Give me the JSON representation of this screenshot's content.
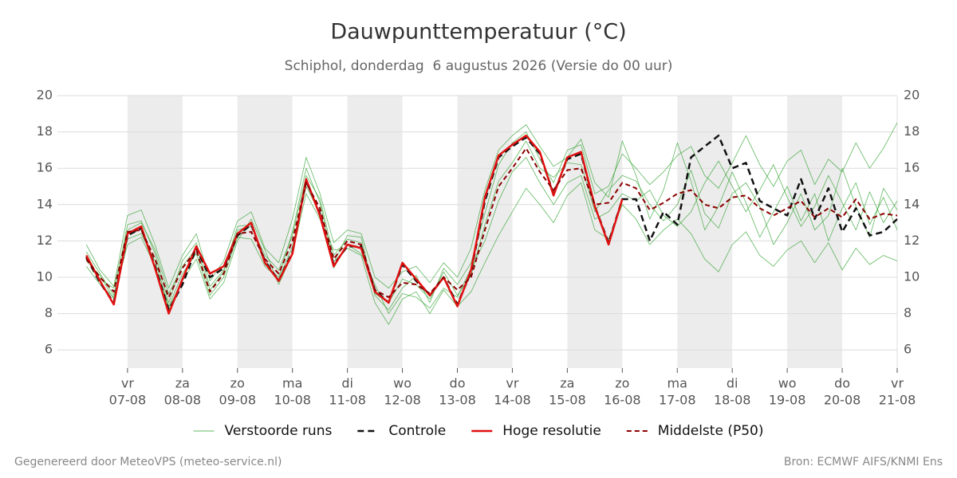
{
  "chart_data": {
    "type": "line",
    "title": "Dauwpunttemperatuur (°C)",
    "subtitle": "Schiphol, donderdag  6 augustus 2026 (Versie do 00 uur)",
    "xlim": [
      5.725,
      21
    ],
    "xticks": [
      {
        "value": 7,
        "label": "vr",
        "sublabel": "07-08"
      },
      {
        "value": 8,
        "label": "za",
        "sublabel": "08-08"
      },
      {
        "value": 9,
        "label": "zo",
        "sublabel": "09-08"
      },
      {
        "value": 10,
        "label": "ma",
        "sublabel": "10-08"
      },
      {
        "value": 11,
        "label": "di",
        "sublabel": "11-08"
      },
      {
        "value": 12,
        "label": "wo",
        "sublabel": "12-08"
      },
      {
        "value": 13,
        "label": "do",
        "sublabel": "13-08"
      },
      {
        "value": 14,
        "label": "vr",
        "sublabel": "14-08"
      },
      {
        "value": 15,
        "label": "za",
        "sublabel": "15-08"
      },
      {
        "value": 16,
        "label": "zo",
        "sublabel": "16-08"
      },
      {
        "value": 17,
        "label": "ma",
        "sublabel": "17-08"
      },
      {
        "value": 18,
        "label": "di",
        "sublabel": "18-08"
      },
      {
        "value": 19,
        "label": "wo",
        "sublabel": "19-08"
      },
      {
        "value": 20,
        "label": "do",
        "sublabel": "20-08"
      },
      {
        "value": 21,
        "label": "vr",
        "sublabel": "21-08"
      }
    ],
    "ylim": [
      5,
      20
    ],
    "yticks": [
      6,
      8,
      10,
      12,
      14,
      16,
      18,
      20
    ],
    "grid": true,
    "x": [
      6.25,
      6.5,
      6.75,
      7,
      7.25,
      7.5,
      7.75,
      8,
      8.25,
      8.5,
      8.75,
      9,
      9.25,
      9.5,
      9.75,
      10,
      10.25,
      10.5,
      10.75,
      11,
      11.25,
      11.5,
      11.75,
      12,
      12.25,
      12.5,
      12.75,
      13,
      13.25,
      13.5,
      13.75,
      14,
      14.25,
      14.5,
      14.75,
      15,
      15.25,
      15.5,
      15.75,
      16,
      16.25,
      16.5,
      16.75,
      17,
      17.25,
      17.5,
      17.75,
      18,
      18.25,
      18.5,
      18.75,
      19,
      19.25,
      19.5,
      19.75,
      20,
      20.25,
      20.5,
      20.75,
      21
    ],
    "series": [
      {
        "name": "Verstoorde runs",
        "color": "#2ca02c",
        "width": 0.8,
        "dash": "none",
        "members": [
          [
            11.4,
            10.2,
            9.0,
            12.9,
            13.1,
            11.3,
            8.6,
            10.9,
            11.9,
            9.5,
            10.4,
            12.8,
            12.9,
            10.7,
            10.0,
            12.5,
            16.0,
            14.1,
            10.8,
            12.3,
            12.2,
            9.0,
            8.2,
            9.4,
            10.1,
            8.6,
            10.5,
            9.6,
            10.8,
            13.5,
            16.2,
            17.4,
            18.0,
            16.5,
            15.2,
            17.0,
            17.3,
            14.6,
            15.0,
            16.8,
            16.0,
            15.1,
            15.8,
            16.7,
            17.2,
            15.6,
            14.9,
            16.3,
            17.8,
            16.2,
            15.0,
            16.4,
            17.0,
            15.1,
            16.5,
            15.8,
            17.4,
            16.0,
            17.1,
            18.5
          ],
          [
            10.6,
            9.6,
            8.9,
            11.8,
            12.2,
            10.6,
            8.3,
            9.8,
            11.0,
            8.8,
            9.7,
            12.0,
            13.2,
            11.5,
            9.6,
            11.3,
            14.6,
            13.2,
            11.5,
            11.6,
            11.2,
            8.6,
            7.4,
            8.8,
            9.2,
            8.0,
            9.3,
            8.4,
            9.2,
            10.8,
            12.3,
            13.6,
            14.9,
            14.0,
            13.0,
            14.5,
            15.2,
            12.6,
            12.1,
            14.0,
            13.2,
            11.8,
            12.6,
            13.2,
            12.4,
            11.0,
            10.3,
            11.8,
            12.5,
            11.2,
            10.6,
            11.5,
            12.0,
            10.8,
            11.9,
            10.4,
            11.6,
            10.7,
            11.2,
            10.9
          ],
          [
            11.8,
            10.4,
            9.5,
            13.4,
            13.7,
            11.8,
            9.4,
            11.2,
            12.4,
            9.8,
            10.9,
            13.1,
            13.6,
            11.6,
            10.8,
            13.2,
            16.6,
            14.6,
            11.9,
            12.6,
            12.4,
            10.0,
            9.4,
            10.3,
            10.6,
            9.7,
            10.8,
            10.0,
            11.6,
            14.8,
            17.0,
            17.8,
            18.4,
            17.2,
            16.1,
            16.6,
            17.6,
            15.2,
            14.4,
            17.5,
            15.6,
            13.2,
            14.8,
            17.4,
            15.3,
            12.6,
            13.9,
            15.8,
            14.1,
            12.2,
            13.6,
            15.0,
            13.1,
            14.6,
            12.0,
            13.8,
            15.2,
            12.9,
            14.4,
            12.6
          ],
          [
            10.9,
            10.1,
            8.8,
            12.1,
            12.4,
            10.9,
            8.4,
            10.2,
            11.3,
            9.0,
            10.0,
            12.2,
            12.1,
            10.6,
            9.9,
            11.7,
            15.0,
            13.5,
            10.5,
            11.8,
            11.3,
            9.6,
            8.0,
            9.1,
            8.9,
            8.3,
            9.4,
            8.9,
            10.5,
            12.0,
            14.2,
            15.8,
            16.6,
            15.2,
            14.0,
            15.2,
            15.6,
            13.2,
            13.6,
            14.6,
            14.2,
            14.8,
            13.4,
            12.8,
            13.6,
            15.2,
            16.4,
            15.0,
            13.6,
            14.8,
            16.2,
            14.4,
            12.8,
            13.9,
            15.6,
            14.1,
            12.6,
            14.7,
            13.0,
            14.2
          ],
          [
            11.1,
            9.9,
            9.4,
            12.6,
            13.0,
            11.5,
            9.1,
            10.6,
            11.6,
            9.3,
            10.3,
            12.6,
            12.8,
            11.2,
            10.4,
            12.3,
            15.6,
            14.3,
            11.2,
            12.1,
            11.9,
            9.1,
            8.6,
            9.9,
            9.6,
            8.8,
            10.3,
            9.0,
            10.1,
            12.9,
            15.3,
            16.3,
            17.5,
            16.0,
            15.5,
            16.3,
            16.2,
            13.6,
            14.8,
            15.6,
            15.3,
            14.0,
            13.1,
            14.0,
            15.9,
            13.5,
            12.7,
            14.6,
            15.2,
            13.9,
            11.8,
            13.0,
            14.6,
            12.6,
            13.4,
            16.0,
            13.9,
            12.2,
            14.9,
            13.7
          ]
        ]
      },
      {
        "name": "Controle",
        "color": "#111111",
        "width": 2.5,
        "dash": "8 5",
        "values": [
          11.1,
          9.7,
          8.6,
          12.3,
          12.7,
          10.6,
          8.2,
          9.6,
          11.6,
          10.0,
          10.5,
          12.3,
          12.9,
          10.9,
          9.8,
          11.4,
          15.3,
          13.5,
          10.7,
          11.7,
          11.7,
          9.3,
          8.6,
          10.7,
          9.8,
          9.0,
          10.0,
          8.5,
          10.3,
          14.2,
          16.6,
          17.2,
          17.7,
          16.8,
          14.6,
          16.5,
          16.8,
          13.9,
          11.9,
          14.3,
          14.3,
          12.0,
          13.6,
          12.9,
          16.6,
          17.2,
          17.8,
          16.0,
          16.3,
          14.2,
          13.8,
          13.4,
          15.4,
          13.2,
          14.9,
          12.5,
          13.8,
          12.3,
          12.5,
          13.2
        ]
      },
      {
        "name": "Hoge resolutie",
        "color": "#e01010",
        "width": 2.5,
        "dash": "none",
        "values": [
          11.2,
          9.8,
          8.5,
          12.4,
          12.8,
          10.5,
          8.0,
          9.9,
          11.7,
          10.2,
          10.6,
          12.4,
          13.0,
          10.8,
          9.8,
          11.3,
          15.4,
          13.4,
          10.6,
          11.8,
          11.6,
          9.2,
          8.6,
          10.8,
          9.9,
          9.0,
          10.0,
          8.4,
          10.4,
          14.4,
          16.7,
          17.3,
          17.8,
          16.9,
          14.5,
          16.6,
          16.9,
          13.9,
          11.8,
          14.3,
          null,
          null,
          null,
          null,
          null,
          null,
          null,
          null,
          null,
          null,
          null,
          null,
          null,
          null,
          null,
          null,
          null,
          null,
          null,
          null
        ]
      },
      {
        "name": "Middelste (P50)",
        "color": "#8b0000",
        "width": 2,
        "dash": "6 4",
        "values": [
          11.0,
          10.0,
          9.2,
          12.5,
          12.6,
          11.0,
          8.9,
          10.5,
          11.5,
          9.2,
          10.2,
          12.4,
          12.5,
          11.0,
          10.2,
          12.0,
          15.2,
          13.8,
          11.0,
          12.0,
          11.8,
          9.3,
          8.9,
          9.7,
          9.6,
          9.1,
          10.0,
          9.3,
          10.0,
          12.6,
          15.0,
          16.0,
          17.1,
          15.8,
          14.8,
          15.9,
          16.0,
          14.0,
          14.1,
          15.2,
          14.9,
          13.7,
          14.1,
          14.6,
          14.8,
          14.0,
          13.8,
          14.4,
          14.5,
          13.8,
          13.4,
          13.8,
          14.2,
          13.3,
          13.8,
          13.3,
          14.3,
          13.2,
          13.5,
          13.4
        ]
      }
    ]
  },
  "footer": {
    "left": "Gegenereerd door MeteoVPS (meteo-service.nl)",
    "right": "Bron: ECMWF AIFS/KNMI Ens"
  }
}
